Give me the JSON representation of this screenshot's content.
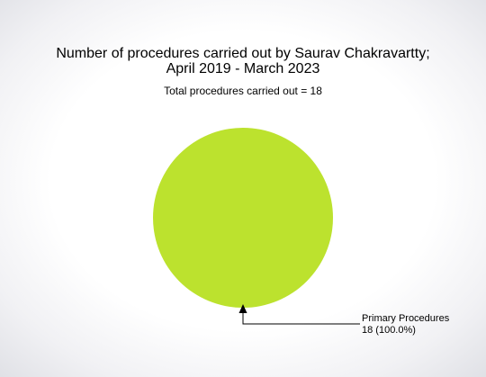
{
  "chart_data": {
    "type": "pie",
    "title_lines": [
      "Number of procedures carried out by Saurav Chakravartty;",
      "April 2019 - March 2023"
    ],
    "subtitle": "Total procedures carried out = 18",
    "slices": [
      {
        "name": "Primary Procedures",
        "value": 18,
        "label": "18 (100.0%)",
        "color": "#bce22e"
      }
    ]
  }
}
